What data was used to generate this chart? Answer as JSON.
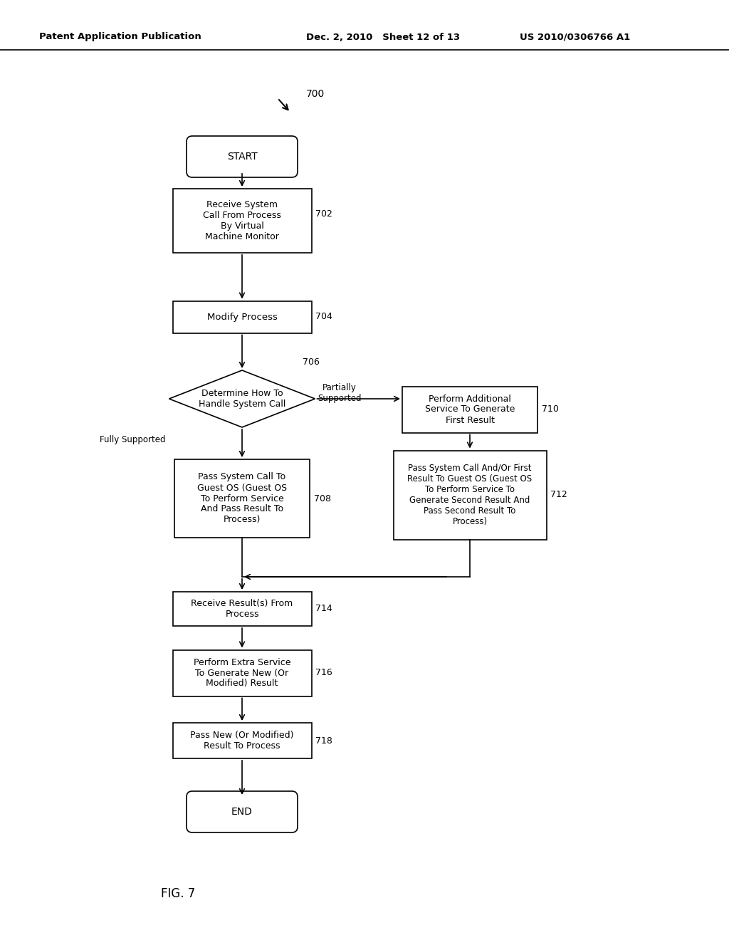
{
  "title_left": "Patent Application Publication",
  "title_mid": "Dec. 2, 2010   Sheet 12 of 13",
  "title_right": "US 2010/0306766 A1",
  "fig_label": "FIG. 7",
  "flow_label": "700",
  "bg_color": "#ffffff",
  "box_color": "#ffffff",
  "box_edge": "#000000",
  "text_color": "#000000"
}
